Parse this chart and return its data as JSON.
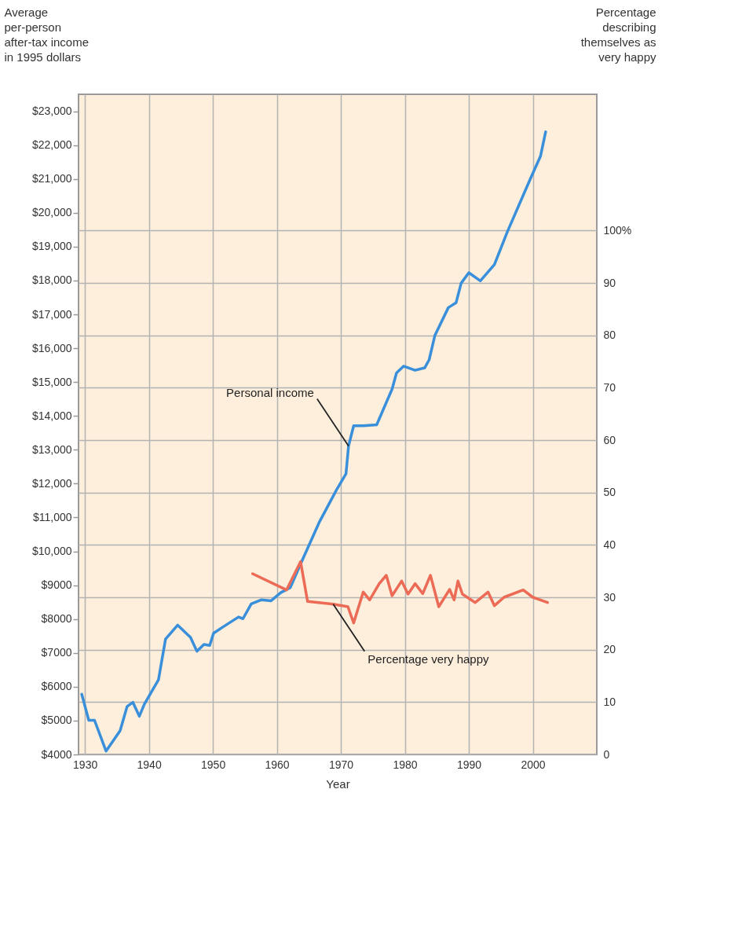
{
  "chart_data": {
    "type": "line",
    "xlabel": "Year",
    "ylabel": "Average per-person after-tax income in 1995 dollars",
    "y2label": "Percentage describing themselves as very happy",
    "xlim": [
      1929,
      2010
    ],
    "xticks": [
      1930,
      1940,
      1950,
      1960,
      1970,
      1980,
      1990,
      2000
    ],
    "ylim": [
      4000,
      23500
    ],
    "yticks": [
      {
        "value": 4000,
        "label": "$4000"
      },
      {
        "value": 5000,
        "label": "$5000"
      },
      {
        "value": 6000,
        "label": "$6000"
      },
      {
        "value": 7000,
        "label": "$7000"
      },
      {
        "value": 8000,
        "label": "$8000"
      },
      {
        "value": 9000,
        "label": "$9000"
      },
      {
        "value": 10000,
        "label": "$10,000"
      },
      {
        "value": 11000,
        "label": "$11,000"
      },
      {
        "value": 12000,
        "label": "$12,000"
      },
      {
        "value": 13000,
        "label": "$13,000"
      },
      {
        "value": 14000,
        "label": "$14,000"
      },
      {
        "value": 15000,
        "label": "$15,000"
      },
      {
        "value": 16000,
        "label": "$16,000"
      },
      {
        "value": 17000,
        "label": "$17,000"
      },
      {
        "value": 18000,
        "label": "$18,000"
      },
      {
        "value": 19000,
        "label": "$19,000"
      },
      {
        "value": 20000,
        "label": "$20,000"
      },
      {
        "value": 21000,
        "label": "$21,000"
      },
      {
        "value": 22000,
        "label": "$22,000"
      },
      {
        "value": 23000,
        "label": "$23,000"
      }
    ],
    "y2lim": [
      0,
      126
    ],
    "y2ticks": [
      0,
      10,
      20,
      30,
      40,
      50,
      60,
      70,
      80,
      90,
      {
        "value": 100,
        "label": "100%"
      }
    ],
    "grid": true,
    "series": [
      {
        "color": "#3a8fdb",
        "x": [
          1929.5,
          1930.6,
          1931.5,
          1933.3,
          1935.5,
          1936.6,
          1937.5,
          1938.5,
          1939.3,
          1941.5,
          1942.6,
          1944.5,
          1946.5,
          1947.5,
          1948.6,
          1949.5,
          1950.1,
          1951.6,
          1954,
          1954.7,
          1956,
          1957.6,
          1959.1,
          1960.6,
          1962.1,
          1964,
          1966.6,
          1969.3,
          1970.8,
          1971.2,
          1972,
          1973.5,
          1975.6,
          1978,
          1978.7,
          1979.8,
          1981.6,
          1983.1,
          1983.8,
          1984.7,
          1986.8,
          1988,
          1988.8,
          1990,
          1991.8,
          1994,
          1996,
          1999.7,
          2001.2,
          2002
        ],
        "values": [
          5780,
          5010,
          5010,
          4100,
          4700,
          5420,
          5540,
          5130,
          5490,
          6210,
          7410,
          7820,
          7460,
          7050,
          7250,
          7220,
          7580,
          7770,
          8060,
          8010,
          8450,
          8570,
          8540,
          8780,
          8930,
          9750,
          10850,
          11810,
          12290,
          13110,
          13710,
          13710,
          13740,
          14790,
          15270,
          15470,
          15350,
          15420,
          15660,
          16380,
          17200,
          17340,
          17920,
          18230,
          17990,
          18470,
          19430,
          21040,
          21670,
          22390
        ]
      },
      {
        "color": "#ec6b57",
        "axis": "y2",
        "x": [
          1956.2,
          1961.5,
          1963.7,
          1964.8,
          1968.8,
          1971.1,
          1972,
          1972.6,
          1973.5,
          1974.5,
          1976,
          1977.1,
          1978,
          1979.5,
          1980.5,
          1981.6,
          1982.8,
          1984,
          1985.3,
          1987,
          1987.7,
          1988.3,
          1989,
          1991,
          1993,
          1994,
          1995.5,
          1998.5,
          2000,
          2002.3
        ],
        "values": [
          34.5,
          31.4,
          36.8,
          29.2,
          28.7,
          28.2,
          25.1,
          27.5,
          31.0,
          29.5,
          32.6,
          34.2,
          30.3,
          33.1,
          30.6,
          32.6,
          30.7,
          34.2,
          28.2,
          31.5,
          29.5,
          33.1,
          30.6,
          29.0,
          31.0,
          28.4,
          30.0,
          31.4,
          30.0,
          29.0
        ]
      }
    ],
    "annotations": [
      {
        "text": "Personal income",
        "x": 1971.2,
        "y": 13110
      },
      {
        "text": "Percentage very happy",
        "x": 1968.8,
        "y": 8440
      }
    ]
  }
}
